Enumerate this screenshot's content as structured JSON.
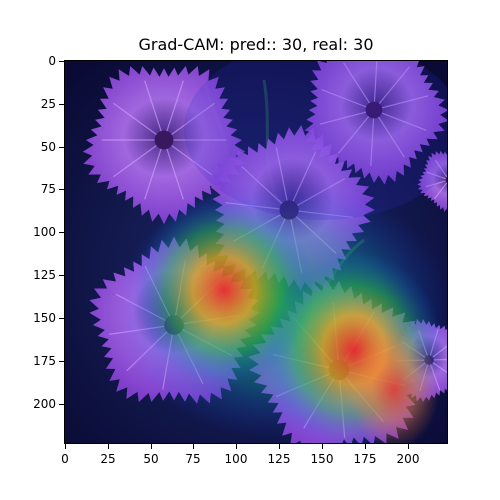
{
  "figure": {
    "title": "Grad-CAM: pred:: 30, real: 30",
    "image_size": 224,
    "xticks": [
      "0",
      "25",
      "50",
      "75",
      "100",
      "125",
      "150",
      "175",
      "200"
    ],
    "yticks": [
      "0",
      "25",
      "50",
      "75",
      "100",
      "125",
      "150",
      "175",
      "200"
    ]
  },
  "colors": {
    "background": "#0b0b3a",
    "petal": "#9a4fe0",
    "petal_light": "#c890ff",
    "heat_red": "#ff3030",
    "heat_yellow": "#ffe000",
    "heat_green": "#20c040"
  }
}
